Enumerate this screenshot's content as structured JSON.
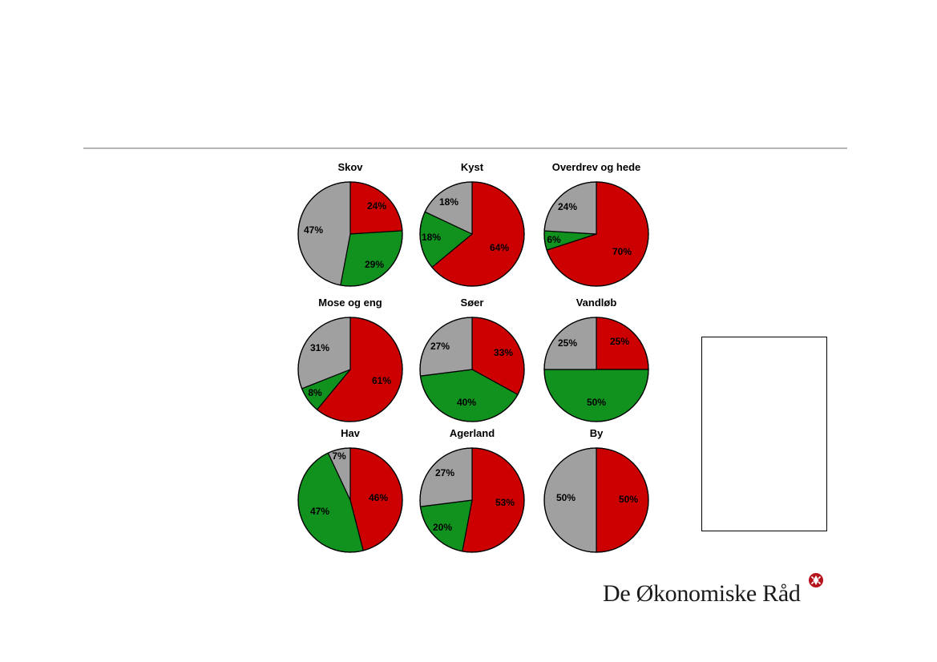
{
  "chart_data": [
    {
      "type": "pie",
      "title": "Skov",
      "values": [
        24,
        29,
        47
      ],
      "labels": [
        "24%",
        "29%",
        "47%"
      ]
    },
    {
      "type": "pie",
      "title": "Kyst",
      "values": [
        64,
        18,
        18
      ],
      "labels": [
        "64%",
        "18%",
        "18%"
      ]
    },
    {
      "type": "pie",
      "title": "Overdrev og hede",
      "values": [
        70,
        6,
        24
      ],
      "labels": [
        "70%",
        "6%",
        "24%"
      ]
    },
    {
      "type": "pie",
      "title": "Mose og eng",
      "values": [
        61,
        8,
        31
      ],
      "labels": [
        "61%",
        "8%",
        "31%"
      ]
    },
    {
      "type": "pie",
      "title": "Søer",
      "values": [
        33,
        40,
        27
      ],
      "labels": [
        "33%",
        "40%",
        "27%"
      ]
    },
    {
      "type": "pie",
      "title": "Vandløb",
      "values": [
        25,
        50,
        25
      ],
      "labels": [
        "25%",
        "50%",
        "25%"
      ]
    },
    {
      "type": "pie",
      "title": "Hav",
      "values": [
        46,
        47,
        7
      ],
      "labels": [
        "46%",
        "47%",
        "7%"
      ]
    },
    {
      "type": "pie",
      "title": "Agerland",
      "values": [
        53,
        20,
        27
      ],
      "labels": [
        "53%",
        "20%",
        "27%"
      ]
    },
    {
      "type": "pie",
      "title": "By",
      "values": [
        50,
        0,
        50
      ],
      "labels": [
        "50%",
        "",
        "50%"
      ]
    }
  ],
  "colors": {
    "red": "#cc0000",
    "green": "#11911e",
    "gray": "#a0a0a0",
    "outline": "#000000"
  },
  "logo": {
    "text": "De Økonomiske Råd",
    "mark_color": "#b5121b"
  }
}
